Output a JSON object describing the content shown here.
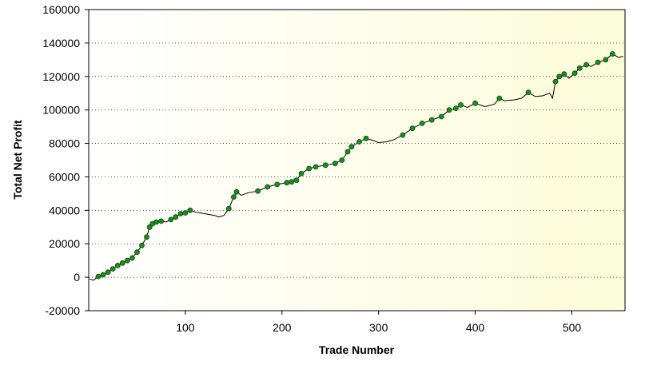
{
  "chart_data": {
    "type": "line",
    "title": "",
    "xlabel": "Trade Number",
    "ylabel": "Total Net Profit",
    "xlim": [
      0,
      555
    ],
    "ylim": [
      -20000,
      160000
    ],
    "x_ticks": [
      100,
      200,
      300,
      400,
      500
    ],
    "y_ticks": [
      -20000,
      0,
      20000,
      40000,
      60000,
      80000,
      100000,
      120000,
      140000,
      160000
    ],
    "grid": true,
    "legend": "none",
    "series": [
      {
        "points": [
          [
            1,
            -1000
          ],
          [
            5,
            -1800
          ],
          [
            10,
            500
          ],
          [
            15,
            1500
          ],
          [
            20,
            3000
          ],
          [
            25,
            5000
          ],
          [
            30,
            7000
          ],
          [
            35,
            8500
          ],
          [
            40,
            10000
          ],
          [
            45,
            11500
          ],
          [
            50,
            15000
          ],
          [
            55,
            19000
          ],
          [
            60,
            24000
          ],
          [
            63,
            30000
          ],
          [
            66,
            32000
          ],
          [
            70,
            33000
          ],
          [
            75,
            33500
          ],
          [
            80,
            33000
          ],
          [
            85,
            34500
          ],
          [
            90,
            36000
          ],
          [
            95,
            38000
          ],
          [
            100,
            38500
          ],
          [
            105,
            40000
          ],
          [
            110,
            39000
          ],
          [
            115,
            38500
          ],
          [
            120,
            38000
          ],
          [
            125,
            37500
          ],
          [
            130,
            37000
          ],
          [
            135,
            36000
          ],
          [
            140,
            37000
          ],
          [
            145,
            41000
          ],
          [
            150,
            48000
          ],
          [
            153,
            51000
          ],
          [
            158,
            49000
          ],
          [
            165,
            50500
          ],
          [
            175,
            51500
          ],
          [
            185,
            54000
          ],
          [
            195,
            55500
          ],
          [
            205,
            56500
          ],
          [
            210,
            57000
          ],
          [
            215,
            58000
          ],
          [
            220,
            62000
          ],
          [
            228,
            65000
          ],
          [
            235,
            66000
          ],
          [
            245,
            67000
          ],
          [
            255,
            68000
          ],
          [
            262,
            70000
          ],
          [
            268,
            75000
          ],
          [
            272,
            78000
          ],
          [
            280,
            81000
          ],
          [
            287,
            83000
          ],
          [
            293,
            82000
          ],
          [
            300,
            80500
          ],
          [
            308,
            81000
          ],
          [
            315,
            82000
          ],
          [
            325,
            85000
          ],
          [
            335,
            89000
          ],
          [
            345,
            92000
          ],
          [
            355,
            94000
          ],
          [
            365,
            96000
          ],
          [
            373,
            100000
          ],
          [
            380,
            101000
          ],
          [
            385,
            103000
          ],
          [
            392,
            101500
          ],
          [
            400,
            104000
          ],
          [
            410,
            102000
          ],
          [
            420,
            103500
          ],
          [
            425,
            107000
          ],
          [
            430,
            105500
          ],
          [
            440,
            106000
          ],
          [
            448,
            107000
          ],
          [
            455,
            110500
          ],
          [
            462,
            108000
          ],
          [
            470,
            108500
          ],
          [
            477,
            110000
          ],
          [
            480,
            107000
          ],
          [
            483,
            117000
          ],
          [
            487,
            120000
          ],
          [
            492,
            121500
          ],
          [
            497,
            119000
          ],
          [
            503,
            122000
          ],
          [
            508,
            125000
          ],
          [
            515,
            127000
          ],
          [
            520,
            126000
          ],
          [
            527,
            128500
          ],
          [
            535,
            130000
          ],
          [
            542,
            133500
          ],
          [
            548,
            131500
          ],
          [
            553,
            132000
          ]
        ]
      }
    ],
    "marker_color": "#1f8a1f",
    "line_color": "#000000"
  }
}
